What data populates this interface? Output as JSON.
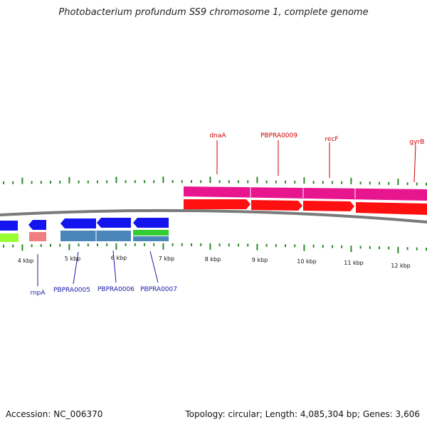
{
  "title": "Photobacterium profundum SS9 chromosome 1, complete genome",
  "accession": "Accession: NC_006370",
  "summary": "Topology: circular; Length: 4,085,304 bp; Genes: 3,606",
  "colors": {
    "backbone": "#7a7a7a",
    "tick": "#2a8a2a",
    "forward_gene": "#ff1010",
    "forward_cds": "#e8168e",
    "reverse_gene": "#1414ee",
    "reverse_cds": "#4a86b8",
    "rna": "#f08080",
    "misc": "#33cc33",
    "lime": "#99ff33",
    "label_forward": "#cc0000",
    "label_reverse": "#1a1aaa"
  },
  "scale_labels": [
    "4 kbp",
    "5 kbp",
    "6 kbp",
    "7 kbp",
    "8 kbp",
    "9 kbp",
    "10 kbp",
    "11 kbp",
    "12 kbp"
  ],
  "forward_gene_labels": [
    "dnaA",
    "PBPRA0009",
    "recF",
    "gyrB"
  ],
  "reverse_gene_labels": [
    "rnpA",
    "PBPRA0005",
    "PBPRA0006",
    "PBPRA0007"
  ]
}
